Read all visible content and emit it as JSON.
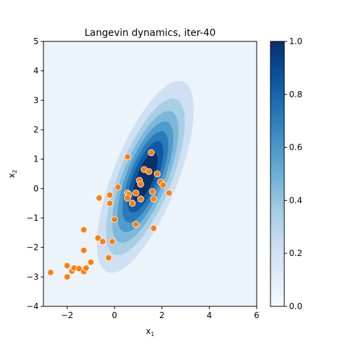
{
  "chart_data": {
    "type": "scatter",
    "title": "Langevin dynamics, iter-40",
    "xlabel_base": "x",
    "xlabel_sub": "1",
    "ylabel_base": "x",
    "ylabel_sub": "2",
    "xlim": [
      -3,
      6
    ],
    "ylim": [
      -4,
      5
    ],
    "xticks": [
      -2,
      0,
      2,
      4,
      6
    ],
    "yticks": [
      -4,
      -3,
      -2,
      -1,
      0,
      1,
      2,
      3,
      4,
      5
    ],
    "grid": false,
    "density": {
      "mean": [
        1.3,
        0.4
      ],
      "std": [
        1.0,
        1.6
      ],
      "corr": 0.7,
      "levels": [
        0.125,
        0.25,
        0.375,
        0.5,
        0.625,
        0.75,
        0.875
      ],
      "colors": [
        "#ebf3fb",
        "#cee0f2",
        "#a9cfe5",
        "#7db8da",
        "#4f9bcb",
        "#2b7bba",
        "#0f5aa3",
        "#08306b"
      ]
    },
    "colorbar": {
      "range": [
        0,
        1
      ],
      "ticks": [
        0.0,
        0.2,
        0.4,
        0.6,
        0.8,
        1.0
      ],
      "tick_labels": [
        "0.0",
        "0.2",
        "0.4",
        "0.6",
        "0.8",
        "1.0"
      ]
    },
    "points_color": "#ff7f0e",
    "points": [
      [
        -2.7,
        -2.85
      ],
      [
        -2.0,
        -3.0
      ],
      [
        -2.0,
        -2.62
      ],
      [
        -1.8,
        -2.8
      ],
      [
        -1.7,
        -2.7
      ],
      [
        -1.5,
        -2.72
      ],
      [
        -1.3,
        -2.82
      ],
      [
        -1.2,
        -2.7
      ],
      [
        -1.0,
        -2.5
      ],
      [
        -1.3,
        -2.1
      ],
      [
        -1.3,
        -1.4
      ],
      [
        -0.7,
        -1.68
      ],
      [
        -0.5,
        -1.8
      ],
      [
        -0.1,
        -1.8
      ],
      [
        -0.25,
        -2.35
      ],
      [
        0.0,
        -1.05
      ],
      [
        -0.65,
        -0.32
      ],
      [
        -0.2,
        -0.22
      ],
      [
        -0.2,
        -0.5
      ],
      [
        0.15,
        0.05
      ],
      [
        0.55,
        1.08
      ],
      [
        0.55,
        -0.15
      ],
      [
        0.6,
        -0.2
      ],
      [
        0.55,
        -0.32
      ],
      [
        0.75,
        -0.5
      ],
      [
        0.9,
        -0.15
      ],
      [
        0.9,
        -1.22
      ],
      [
        1.05,
        0.28
      ],
      [
        1.1,
        0.15
      ],
      [
        1.1,
        -0.35
      ],
      [
        1.25,
        0.65
      ],
      [
        1.45,
        0.58
      ],
      [
        1.55,
        1.22
      ],
      [
        1.6,
        -0.1
      ],
      [
        1.65,
        -0.35
      ],
      [
        1.65,
        -1.35
      ],
      [
        1.8,
        0.5
      ],
      [
        1.95,
        0.22
      ],
      [
        2.05,
        0.12
      ],
      [
        2.3,
        -0.15
      ]
    ]
  }
}
